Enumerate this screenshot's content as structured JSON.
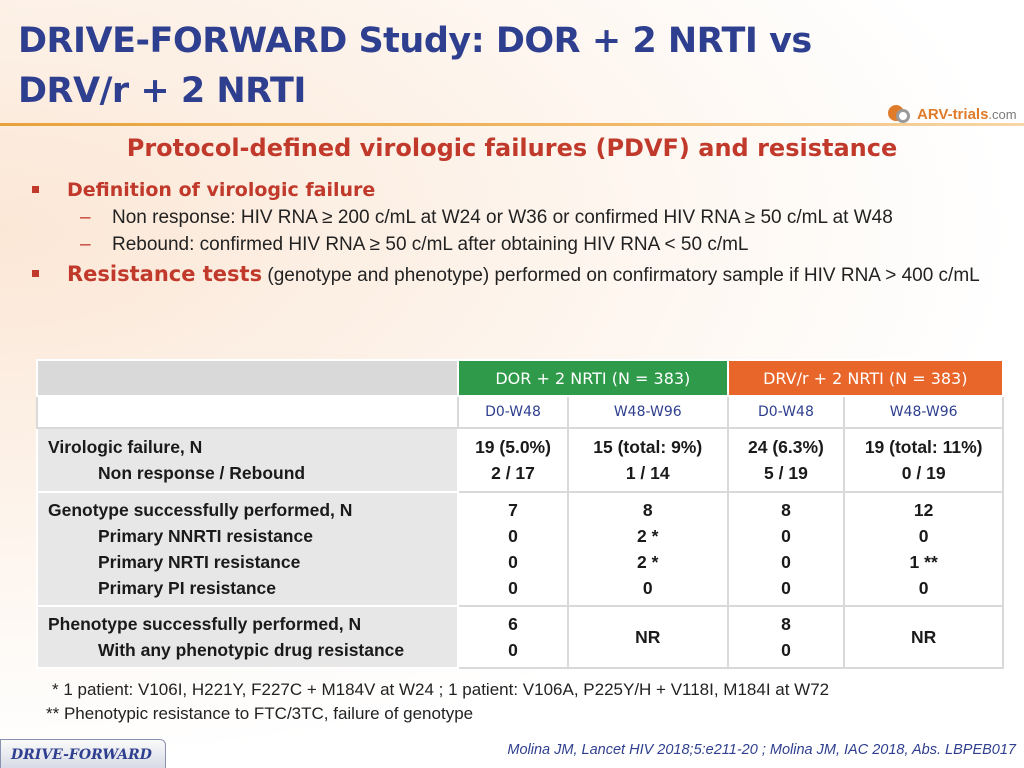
{
  "header": {
    "title": "DRIVE-FORWARD Study: DOR + 2 NRTI vs DRV/r + 2 NRTI",
    "logo_main": "ARV-trials",
    "logo_suffix": ".com"
  },
  "subtitle": "Protocol-defined virologic failures (PDVF) and resistance",
  "bullets": {
    "b1_head": "Definition of virologic failure",
    "b1_items": [
      "Non response: HIV RNA ≥ 200 c/mL at W24 or W36 or confirmed HIV RNA ≥ 50 c/mL at W48",
      "Rebound: confirmed HIV RNA ≥ 50 c/mL after obtaining HIV RNA < 50 c/mL"
    ],
    "b2_head": "Resistance tests",
    "b2_rest": " (genotype and phenotype) performed on confirmatory sample if HIV RNA > 400 c/mL"
  },
  "table": {
    "group_dor": "DOR + 2 NRTI  (N = 383)",
    "group_drv": "DRV/r + 2 NRTI (N = 383)",
    "periods": [
      "D0-W48",
      "W48-W96",
      "D0-W48",
      "W48-W96"
    ],
    "rows": [
      {
        "label_main": "Virologic failure, N",
        "label_subs": [
          "Non response / Rebound"
        ],
        "cells": [
          [
            "19 (5.0%)",
            "2 / 17"
          ],
          [
            "15 (total: 9%)",
            "1 / 14"
          ],
          [
            "24 (6.3%)",
            "5 / 19"
          ],
          [
            "19 (total: 11%)",
            "0 / 19"
          ]
        ]
      },
      {
        "label_main": "Genotype successfully performed, N",
        "label_subs": [
          "Primary NNRTI resistance",
          "Primary NRTI resistance",
          "Primary PI resistance"
        ],
        "cells": [
          [
            "7",
            "0",
            "0",
            "0"
          ],
          [
            "8",
            "2 *",
            "2 *",
            "0"
          ],
          [
            "8",
            "0",
            "0",
            "0"
          ],
          [
            "12",
            "0",
            "1 **",
            "0"
          ]
        ]
      },
      {
        "label_main": "Phenotype successfully performed, N",
        "label_subs": [
          "With any phenotypic drug resistance"
        ],
        "cells": [
          [
            "6",
            "0"
          ],
          [
            "NR"
          ],
          [
            "8",
            "0"
          ],
          [
            "NR"
          ]
        ]
      }
    ]
  },
  "notes": [
    "* 1 patient: V106I, H221Y, F227C + M184V at W24 ; 1 patient: V106A, P225Y/H + V118I, M184I at W72",
    "** Phenotypic resistance to FTC/3TC, failure of genotype"
  ],
  "footer": {
    "badge": "DRIVE-FORWARD",
    "citation": "Molina JM, Lancet HIV 2018;5:e211-20 ; Molina JM, IAC 2018, Abs. LBPEB017"
  }
}
